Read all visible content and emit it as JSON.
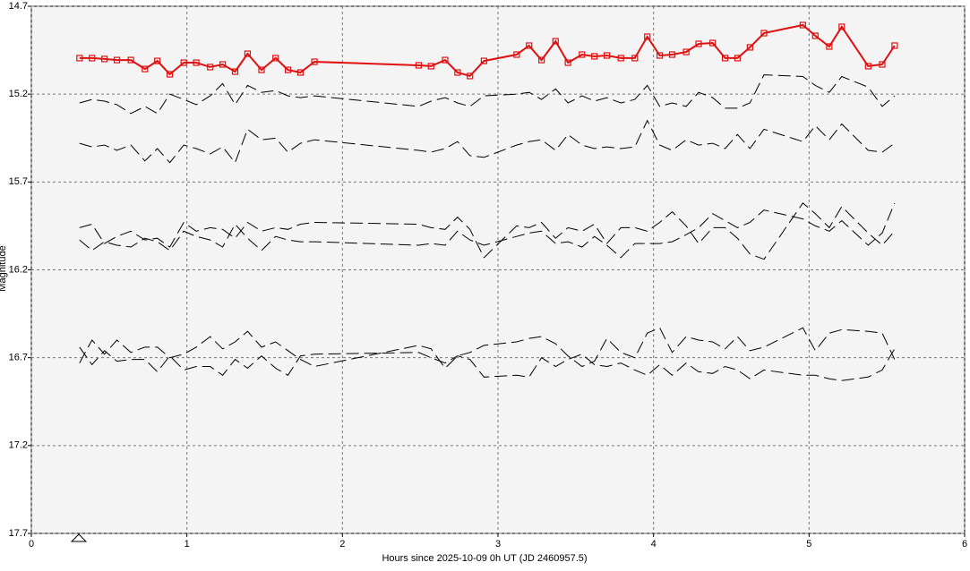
{
  "chart_data": {
    "type": "line",
    "xlabel": "Hours since 2025-10-09 0h UT (JD 2460957.5)",
    "ylabel": "Magnitude",
    "xlim": [
      0,
      6
    ],
    "xticks": [
      0,
      1,
      2,
      3,
      4,
      5,
      6
    ],
    "ylim": [
      17.7,
      14.7
    ],
    "yticks": [
      14.7,
      15.2,
      15.7,
      16.2,
      16.7,
      17.2,
      17.7
    ],
    "grid": true,
    "x": [
      0.31,
      0.39,
      0.47,
      0.55,
      0.64,
      0.73,
      0.81,
      0.89,
      0.98,
      1.06,
      1.15,
      1.23,
      1.31,
      1.39,
      1.48,
      1.57,
      1.65,
      1.73,
      1.82,
      2.49,
      2.57,
      2.66,
      2.74,
      2.82,
      2.91,
      3.12,
      3.2,
      3.28,
      3.37,
      3.45,
      3.54,
      3.62,
      3.7,
      3.79,
      3.88,
      3.96,
      4.04,
      4.12,
      4.21,
      4.29,
      4.38,
      4.46,
      4.54,
      4.62,
      4.71,
      4.96,
      5.04,
      5.13,
      5.21,
      5.38,
      5.47,
      5.55
    ],
    "series": [
      {
        "color": "#e01010",
        "marker": "square",
        "dashed": false,
        "values": [
          14.995,
          14.995,
          15.0,
          15.006,
          15.006,
          15.057,
          15.011,
          15.087,
          15.021,
          15.021,
          15.046,
          15.031,
          15.072,
          14.97,
          15.062,
          14.995,
          15.062,
          15.077,
          15.016,
          15.036,
          15.041,
          15.006,
          15.077,
          15.097,
          15.011,
          14.975,
          14.924,
          15.006,
          14.899,
          15.021,
          14.975,
          14.985,
          14.98,
          14.995,
          14.995,
          14.873,
          14.98,
          14.975,
          14.96,
          14.914,
          14.909,
          14.995,
          14.995,
          14.934,
          14.853,
          14.807,
          14.868,
          14.929,
          14.817,
          15.041,
          15.031,
          14.924
        ]
      },
      {
        "color": "#000000",
        "dashed": true,
        "values": [
          15.25,
          15.23,
          15.24,
          15.26,
          15.31,
          15.27,
          15.31,
          15.2,
          15.23,
          15.26,
          15.21,
          15.14,
          15.26,
          15.15,
          15.19,
          15.18,
          15.21,
          15.22,
          15.21,
          15.27,
          15.24,
          15.22,
          15.25,
          15.27,
          15.21,
          15.2,
          15.19,
          15.23,
          15.17,
          15.25,
          15.21,
          15.24,
          15.22,
          15.25,
          15.23,
          15.15,
          15.27,
          15.25,
          15.27,
          15.19,
          15.22,
          15.28,
          15.28,
          15.25,
          15.09,
          15.1,
          15.15,
          15.19,
          15.1,
          15.16,
          15.27,
          15.21
        ]
      },
      {
        "color": "#000000",
        "dashed": true,
        "values": [
          15.48,
          15.5,
          15.49,
          15.52,
          15.49,
          15.58,
          15.51,
          15.59,
          15.49,
          15.51,
          15.54,
          15.5,
          15.59,
          15.4,
          15.46,
          15.45,
          15.53,
          15.48,
          15.46,
          15.52,
          15.53,
          15.51,
          15.47,
          15.55,
          15.56,
          15.49,
          15.47,
          15.46,
          15.52,
          15.43,
          15.49,
          15.51,
          15.5,
          15.51,
          15.5,
          15.35,
          15.49,
          15.52,
          15.46,
          15.49,
          15.48,
          15.51,
          15.43,
          15.51,
          15.4,
          15.47,
          15.38,
          15.46,
          15.37,
          15.52,
          15.53,
          15.48
        ]
      },
      {
        "color": "#000000",
        "dashed": true,
        "values": [
          15.96,
          15.94,
          16.05,
          16.01,
          15.98,
          16.03,
          16.02,
          16.07,
          15.93,
          15.98,
          15.96,
          15.97,
          16.02,
          15.93,
          15.98,
          15.96,
          15.97,
          15.94,
          15.93,
          15.94,
          15.96,
          15.97,
          15.9,
          15.97,
          16.13,
          15.95,
          15.96,
          15.93,
          16.02,
          15.96,
          15.98,
          15.94,
          16.05,
          15.96,
          15.96,
          15.98,
          15.93,
          15.87,
          15.95,
          16.05,
          15.96,
          15.96,
          16.02,
          16.11,
          16.14,
          15.82,
          15.88,
          15.96,
          15.84,
          15.99,
          16.06,
          15.98
        ]
      },
      {
        "color": "#000000",
        "dashed": true,
        "values": [
          16.03,
          16.09,
          16.04,
          16.06,
          16.07,
          16.02,
          16.04,
          16.09,
          15.98,
          16.01,
          16.03,
          16.07,
          15.94,
          16.02,
          16.09,
          16.01,
          16.03,
          16.04,
          16.04,
          16.06,
          16.05,
          16.06,
          15.98,
          16.03,
          16.06,
          16.01,
          15.99,
          15.98,
          16.05,
          16.04,
          16.07,
          16.01,
          16.06,
          16.13,
          16.05,
          16.05,
          16.05,
          16.04,
          16.0,
          15.96,
          15.88,
          15.92,
          15.96,
          15.93,
          15.86,
          15.91,
          15.95,
          15.98,
          15.92,
          16.06,
          15.99,
          15.82
        ]
      },
      {
        "color": "#000000",
        "dashed": true,
        "values": [
          16.73,
          16.6,
          16.68,
          16.6,
          16.67,
          16.64,
          16.64,
          16.7,
          16.68,
          16.64,
          16.58,
          16.65,
          16.61,
          16.55,
          16.64,
          16.61,
          16.66,
          16.71,
          16.75,
          16.63,
          16.65,
          16.76,
          16.69,
          16.67,
          16.63,
          16.61,
          16.59,
          16.58,
          16.62,
          16.69,
          16.75,
          16.72,
          16.59,
          16.67,
          16.7,
          16.56,
          16.53,
          16.67,
          16.58,
          16.6,
          16.61,
          16.65,
          16.58,
          16.66,
          16.64,
          16.53,
          16.66,
          16.56,
          16.54,
          16.55,
          16.56,
          16.71
        ]
      },
      {
        "color": "#000000",
        "dashed": true,
        "values": [
          16.64,
          16.74,
          16.66,
          16.72,
          16.71,
          16.71,
          16.78,
          16.69,
          16.77,
          16.75,
          16.75,
          16.8,
          16.71,
          16.76,
          16.69,
          16.76,
          16.8,
          16.69,
          16.68,
          16.67,
          16.7,
          16.73,
          16.69,
          16.71,
          16.81,
          16.8,
          16.81,
          16.7,
          16.75,
          16.71,
          16.68,
          16.74,
          16.75,
          16.73,
          16.77,
          16.8,
          16.74,
          16.8,
          16.73,
          16.78,
          16.79,
          16.75,
          16.77,
          16.82,
          16.77,
          16.8,
          16.8,
          16.82,
          16.83,
          16.81,
          16.77,
          16.65
        ]
      }
    ]
  }
}
